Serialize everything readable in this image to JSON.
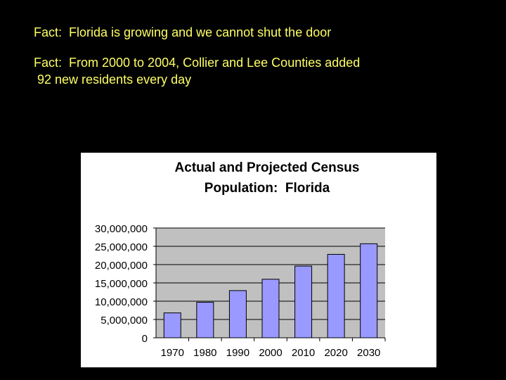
{
  "facts": [
    "Fact:  Florida is growing and we cannot shut the door",
    "Fact:  From 2000 to 2004, Collier and Lee Counties added\n 92 new residents every day"
  ],
  "colors": {
    "background": "#000000",
    "fact_text": "#ffff66",
    "bar_fill": "#9999ff",
    "plot_bg": "#c0c0c0"
  },
  "chart_data": {
    "type": "bar",
    "title_lines": [
      "Actual and Projected Census",
      "Population:  Florida"
    ],
    "categories": [
      "1970",
      "1980",
      "1990",
      "2000",
      "2010",
      "2020",
      "2030"
    ],
    "values": [
      6800000,
      9700000,
      12900000,
      16000000,
      19600000,
      22800000,
      25700000
    ],
    "ylim": [
      0,
      30000000
    ],
    "yticks": [
      "0",
      "5,000,000",
      "10,000,000",
      "15,000,000",
      "20,000,000",
      "25,000,000",
      "30,000,000"
    ],
    "ytick_values": [
      0,
      5000000,
      10000000,
      15000000,
      20000000,
      25000000,
      30000000
    ],
    "xlabel": "",
    "ylabel": "",
    "grid": true,
    "legend": "none"
  }
}
